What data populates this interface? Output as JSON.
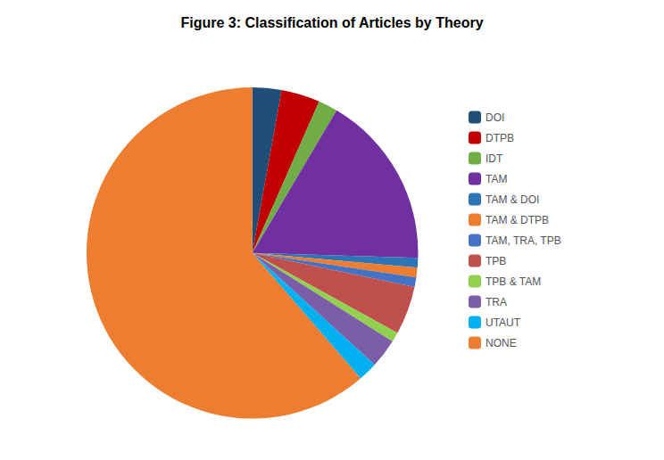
{
  "chart_data": {
    "type": "pie",
    "title": "Figure 3: Classification of Articles by Theory",
    "categories": [
      "DOI",
      "DTPB",
      "IDT",
      "TAM",
      "TAM & DOI",
      "TAM & DTPB",
      "TAM, TRA, TPB",
      "TPB",
      "TPB & TAM",
      "TRA",
      "UTAUT",
      "NONE"
    ],
    "values": [
      3,
      4,
      2,
      18,
      1,
      1,
      1,
      5,
      1,
      3,
      2,
      65
    ],
    "colors": [
      "#1F4E79",
      "#C00000",
      "#70AD47",
      "#7030A0",
      "#2E75B6",
      "#ED7D31",
      "#4472C4",
      "#C0504D",
      "#92D050",
      "#7B5EA7",
      "#00B0F0",
      "#ED7D31"
    ],
    "legend": "right"
  }
}
